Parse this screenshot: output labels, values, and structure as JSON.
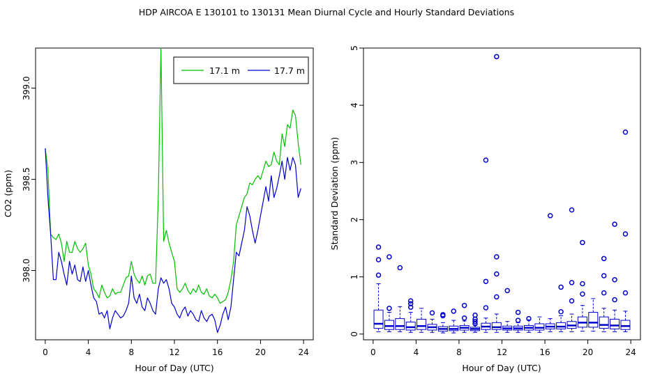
{
  "figure": {
    "title": "HDP   AIRCOA E   130101 to 130131   Mean Diurnal Cycle and Hourly Standard Deviations",
    "colors": {
      "green": "#00c000",
      "blue": "#0000cc",
      "axis": "#000000"
    }
  },
  "chart_data": [
    {
      "type": "line",
      "title": "",
      "xlabel": "Hour of Day (UTC)",
      "ylabel": "CO2 (ppm)",
      "xlim": [
        -0.9,
        24.9
      ],
      "ylim": [
        397.62,
        399.22
      ],
      "xticks": [
        0,
        4,
        8,
        12,
        16,
        20,
        24
      ],
      "xtick_labels": [
        "0",
        "4",
        "8",
        "12",
        "16",
        "20",
        "24"
      ],
      "yticks": [
        398.0,
        398.5,
        399.0
      ],
      "ytick_labels": [
        "398.0",
        "398.5",
        "399.0"
      ],
      "legend": {
        "position": "top-right",
        "entries": [
          "17.1 m",
          "17.7 m"
        ]
      },
      "series": [
        {
          "name": "17.1 m",
          "color": "#00c000",
          "x": [
            0,
            0.25,
            0.5,
            0.75,
            1,
            1.25,
            1.5,
            1.75,
            2,
            2.25,
            2.5,
            2.75,
            3,
            3.25,
            3.5,
            3.75,
            4,
            4.25,
            4.5,
            4.75,
            5,
            5.25,
            5.5,
            5.75,
            6,
            6.25,
            6.5,
            6.75,
            7,
            7.25,
            7.5,
            7.75,
            8,
            8.25,
            8.5,
            8.75,
            9,
            9.25,
            9.5,
            9.75,
            10,
            10.25,
            10.5,
            10.75,
            11,
            11.25,
            11.5,
            11.75,
            12,
            12.25,
            12.5,
            12.75,
            13,
            13.25,
            13.5,
            13.75,
            14,
            14.25,
            14.5,
            14.75,
            15,
            15.25,
            15.5,
            15.75,
            16,
            16.25,
            16.5,
            16.75,
            17,
            17.25,
            17.5,
            17.75,
            18,
            18.25,
            18.5,
            18.75,
            19,
            19.25,
            19.5,
            19.75,
            20,
            20.25,
            20.5,
            20.75,
            21,
            21.25,
            21.5,
            21.75,
            22,
            22.25,
            22.5,
            22.75,
            23,
            23.25,
            23.5,
            23.75
          ],
          "y": [
            398.67,
            398.55,
            398.2,
            398.18,
            398.17,
            398.2,
            398.15,
            398.05,
            398.16,
            398.1,
            398.1,
            398.16,
            398.12,
            398.1,
            398.12,
            398.15,
            398.03,
            397.98,
            397.9,
            397.88,
            397.85,
            397.92,
            397.88,
            397.85,
            397.86,
            397.9,
            397.87,
            397.88,
            397.88,
            397.92,
            397.96,
            397.97,
            398.05,
            397.98,
            397.95,
            397.93,
            397.97,
            397.92,
            397.97,
            397.98,
            397.93,
            397.93,
            398.4,
            399.22,
            398.16,
            398.22,
            398.15,
            398.1,
            398.05,
            397.9,
            397.88,
            397.9,
            397.93,
            397.89,
            397.87,
            397.9,
            397.88,
            397.92,
            397.88,
            397.87,
            397.9,
            397.86,
            397.85,
            397.87,
            397.85,
            397.82,
            397.83,
            397.84,
            397.88,
            397.95,
            398.05,
            398.25,
            398.3,
            398.35,
            398.4,
            398.42,
            398.48,
            398.47,
            398.5,
            398.52,
            398.5,
            398.55,
            398.6,
            398.57,
            398.58,
            398.65,
            398.6,
            398.58,
            398.75,
            398.68,
            398.8,
            398.78,
            398.88,
            398.85,
            398.7,
            398.58
          ]
        },
        {
          "name": "17.7 m",
          "color": "#0000cc",
          "x": [
            0,
            0.25,
            0.5,
            0.75,
            1,
            1.25,
            1.5,
            1.75,
            2,
            2.25,
            2.5,
            2.75,
            3,
            3.25,
            3.5,
            3.75,
            4,
            4.25,
            4.5,
            4.75,
            5,
            5.25,
            5.5,
            5.75,
            6,
            6.25,
            6.5,
            6.75,
            7,
            7.25,
            7.5,
            7.75,
            8,
            8.25,
            8.5,
            8.75,
            9,
            9.25,
            9.5,
            9.75,
            10,
            10.25,
            10.5,
            10.75,
            11,
            11.25,
            11.5,
            11.75,
            12,
            12.25,
            12.5,
            12.75,
            13,
            13.25,
            13.5,
            13.75,
            14,
            14.25,
            14.5,
            14.75,
            15,
            15.25,
            15.5,
            15.75,
            16,
            16.25,
            16.5,
            16.75,
            17,
            17.25,
            17.5,
            17.75,
            18,
            18.25,
            18.5,
            18.75,
            19,
            19.25,
            19.5,
            19.75,
            20,
            20.25,
            20.5,
            20.75,
            21,
            21.25,
            21.5,
            21.75,
            22,
            22.25,
            22.5,
            22.75,
            23,
            23.25,
            23.5,
            23.75
          ],
          "y": [
            398.67,
            398.4,
            398.2,
            397.95,
            397.95,
            398.1,
            398.05,
            397.98,
            397.92,
            398.05,
            397.98,
            398.03,
            397.95,
            397.94,
            398.02,
            397.94,
            398.0,
            397.92,
            397.85,
            397.83,
            397.76,
            397.77,
            397.74,
            397.78,
            397.68,
            397.74,
            397.78,
            397.76,
            397.74,
            397.75,
            397.78,
            397.82,
            397.97,
            397.85,
            397.82,
            397.87,
            397.8,
            397.78,
            397.85,
            397.82,
            397.78,
            397.76,
            397.9,
            397.96,
            397.93,
            397.95,
            397.9,
            397.82,
            397.8,
            397.76,
            397.74,
            397.78,
            397.8,
            397.75,
            397.78,
            397.76,
            397.73,
            397.72,
            397.78,
            397.74,
            397.72,
            397.75,
            397.76,
            397.73,
            397.66,
            397.7,
            397.76,
            397.8,
            397.73,
            397.8,
            397.95,
            398.1,
            398.08,
            398.15,
            398.22,
            398.35,
            398.3,
            398.22,
            398.15,
            398.22,
            398.3,
            398.38,
            398.46,
            398.38,
            398.52,
            398.4,
            398.45,
            398.52,
            398.6,
            398.5,
            398.62,
            398.55,
            398.62,
            398.58,
            398.4,
            398.45
          ]
        }
      ]
    },
    {
      "type": "box",
      "title": "",
      "xlabel": "Hour of Day (UTC)",
      "ylabel": "Standard Deviation (ppm)",
      "xlim": [
        -0.9,
        24.9
      ],
      "ylim": [
        -0.1,
        5.0
      ],
      "xticks": [
        0,
        4,
        8,
        12,
        16,
        20,
        24
      ],
      "xtick_labels": [
        "0",
        "4",
        "8",
        "12",
        "16",
        "20",
        "24"
      ],
      "yticks": [
        0,
        1,
        2,
        3,
        4,
        5
      ],
      "ytick_labels": [
        "0",
        "1",
        "2",
        "3",
        "4",
        "5"
      ],
      "color": "#0000cc",
      "boxes": [
        {
          "x": 0.5,
          "q1": 0.1,
          "median": 0.18,
          "q3": 0.42,
          "lo": 0.04,
          "hi": 0.88,
          "outliers": [
            1.03,
            1.3,
            1.52
          ]
        },
        {
          "x": 1.5,
          "q1": 0.08,
          "median": 0.14,
          "q3": 0.24,
          "lo": 0.04,
          "hi": 0.38,
          "outliers": [
            0.45,
            1.35
          ]
        },
        {
          "x": 2.5,
          "q1": 0.08,
          "median": 0.14,
          "q3": 0.27,
          "lo": 0.04,
          "hi": 0.48,
          "outliers": [
            1.16
          ]
        },
        {
          "x": 3.5,
          "q1": 0.07,
          "median": 0.12,
          "q3": 0.21,
          "lo": 0.03,
          "hi": 0.38,
          "outliers": [
            0.47,
            0.53,
            0.58
          ]
        },
        {
          "x": 4.5,
          "q1": 0.08,
          "median": 0.14,
          "q3": 0.26,
          "lo": 0.03,
          "hi": 0.45,
          "outliers": []
        },
        {
          "x": 5.5,
          "q1": 0.07,
          "median": 0.12,
          "q3": 0.17,
          "lo": 0.03,
          "hi": 0.26,
          "outliers": [
            0.37
          ]
        },
        {
          "x": 6.5,
          "q1": 0.05,
          "median": 0.09,
          "q3": 0.13,
          "lo": 0.02,
          "hi": 0.2,
          "outliers": [
            0.32,
            0.34
          ]
        },
        {
          "x": 7.5,
          "q1": 0.06,
          "median": 0.09,
          "q3": 0.14,
          "lo": 0.02,
          "hi": 0.24,
          "outliers": [
            0.4
          ]
        },
        {
          "x": 8.5,
          "q1": 0.07,
          "median": 0.11,
          "q3": 0.15,
          "lo": 0.03,
          "hi": 0.23,
          "outliers": [
            0.28,
            0.5
          ]
        },
        {
          "x": 9.5,
          "q1": 0.06,
          "median": 0.09,
          "q3": 0.12,
          "lo": 0.03,
          "hi": 0.16,
          "outliers": [
            0.18,
            0.22,
            0.26,
            0.33
          ]
        },
        {
          "x": 10.5,
          "q1": 0.08,
          "median": 0.13,
          "q3": 0.19,
          "lo": 0.03,
          "hi": 0.28,
          "outliers": [
            0.46,
            0.92,
            3.04
          ]
        },
        {
          "x": 11.5,
          "q1": 0.08,
          "median": 0.12,
          "q3": 0.2,
          "lo": 0.03,
          "hi": 0.35,
          "outliers": [
            0.65,
            1.05,
            1.35,
            4.85
          ]
        },
        {
          "x": 12.5,
          "q1": 0.07,
          "median": 0.1,
          "q3": 0.14,
          "lo": 0.03,
          "hi": 0.22,
          "outliers": [
            0.76
          ]
        },
        {
          "x": 13.5,
          "q1": 0.07,
          "median": 0.1,
          "q3": 0.14,
          "lo": 0.03,
          "hi": 0.2,
          "outliers": [
            0.24,
            0.38
          ]
        },
        {
          "x": 14.5,
          "q1": 0.07,
          "median": 0.11,
          "q3": 0.15,
          "lo": 0.03,
          "hi": 0.25,
          "outliers": [
            0.27
          ]
        },
        {
          "x": 15.5,
          "q1": 0.07,
          "median": 0.11,
          "q3": 0.18,
          "lo": 0.03,
          "hi": 0.3,
          "outliers": []
        },
        {
          "x": 16.5,
          "q1": 0.09,
          "median": 0.13,
          "q3": 0.18,
          "lo": 0.04,
          "hi": 0.27,
          "outliers": [
            2.07
          ]
        },
        {
          "x": 17.5,
          "q1": 0.09,
          "median": 0.13,
          "q3": 0.2,
          "lo": 0.04,
          "hi": 0.32,
          "outliers": [
            0.39,
            0.82
          ]
        },
        {
          "x": 18.5,
          "q1": 0.1,
          "median": 0.15,
          "q3": 0.22,
          "lo": 0.04,
          "hi": 0.35,
          "outliers": [
            0.58,
            0.9,
            2.17
          ]
        },
        {
          "x": 19.5,
          "q1": 0.12,
          "median": 0.2,
          "q3": 0.3,
          "lo": 0.05,
          "hi": 0.5,
          "outliers": [
            0.7,
            0.88,
            1.6
          ]
        },
        {
          "x": 20.5,
          "q1": 0.12,
          "median": 0.2,
          "q3": 0.38,
          "lo": 0.05,
          "hi": 0.62,
          "outliers": []
        },
        {
          "x": 21.5,
          "q1": 0.1,
          "median": 0.16,
          "q3": 0.3,
          "lo": 0.04,
          "hi": 0.45,
          "outliers": [
            0.72,
            1.02,
            1.32
          ]
        },
        {
          "x": 22.5,
          "q1": 0.09,
          "median": 0.15,
          "q3": 0.26,
          "lo": 0.04,
          "hi": 0.42,
          "outliers": [
            0.6,
            0.95,
            1.92
          ]
        },
        {
          "x": 23.5,
          "q1": 0.08,
          "median": 0.14,
          "q3": 0.24,
          "lo": 0.04,
          "hi": 0.4,
          "outliers": [
            0.72,
            1.75,
            3.53
          ]
        }
      ]
    }
  ]
}
